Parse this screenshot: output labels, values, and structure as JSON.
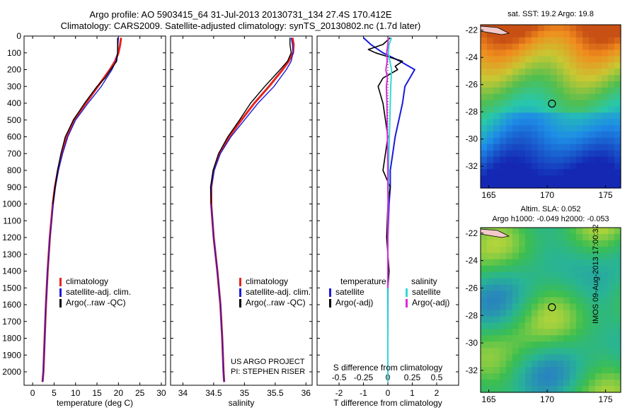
{
  "header": {
    "line1": "Argo profile: AO 5903415_64 31-Jul-2013 20130731_134 27.4S 170.412E",
    "line2": "Climatology: CARS2009. Satellite-adjusted climatology: synTS_20130802.nc (1.7d later)"
  },
  "colors": {
    "climatology": "#e8231c",
    "satellite": "#1a1adb",
    "argo": "#000000",
    "sat_salinity": "#33d9d9",
    "argo_salinity": "#d92ad9"
  },
  "legend": {
    "climatology": "climatology",
    "satellite_adj": "satellite-adj. clim.",
    "argo_raw": "Argo(..raw -QC)",
    "temperature_head": "temperature",
    "salinity_head": "salinity",
    "satellite": "satellite",
    "argo_adj": "Argo(-adj)"
  },
  "footer": {
    "project": "US ARGO PROJECT",
    "pi": "PI: STEPHEN RISER",
    "stamp": "IMOS 09-Aug-2013 17:00:32"
  },
  "maps": {
    "sst_title": "sat. SST: 19.2 Argo: 19.8",
    "sla_title1": "Altim. SLA: 0.052",
    "sla_title2": "Argo h1000: -0.049 h2000: -0.053",
    "lon_ticks": [
      "165",
      "170",
      "175"
    ],
    "lat_ticks": [
      "-22",
      "-24",
      "-26",
      "-28",
      "-30",
      "-32"
    ],
    "profile_lon": 170.412,
    "profile_lat": -27.4
  },
  "chart_data": [
    {
      "type": "line",
      "xlabel": "temperature (deg C)",
      "ylabel": "",
      "xlim": [
        -2,
        31
      ],
      "ylim": [
        2080,
        0
      ],
      "xticks": [
        "0",
        "5",
        "10",
        "15",
        "20",
        "25",
        "30"
      ],
      "yticks": [
        "0",
        "100",
        "200",
        "300",
        "400",
        "500",
        "600",
        "700",
        "800",
        "900",
        "1000",
        "1100",
        "1200",
        "1300",
        "1400",
        "1500",
        "1600",
        "1700",
        "1800",
        "1900",
        "2000"
      ],
      "series": [
        {
          "name": "climatology",
          "y": [
            10,
            50,
            100,
            150,
            200,
            300,
            400,
            500,
            600,
            700,
            800,
            900,
            1000,
            1200,
            1400,
            1600,
            1800,
            2000,
            2060
          ],
          "x": [
            20.6,
            20.4,
            20.0,
            19.2,
            18.0,
            15.2,
            12.4,
            9.6,
            7.9,
            6.8,
            5.9,
            5.2,
            4.7,
            4.0,
            3.5,
            3.1,
            2.8,
            2.5,
            2.3
          ]
        },
        {
          "name": "satellite-adj. clim.",
          "y": [
            10,
            50,
            100,
            150,
            200,
            300,
            400,
            500,
            600,
            700,
            800,
            900,
            1000,
            1200,
            1400,
            1600,
            1800,
            2000,
            2060
          ],
          "x": [
            20.0,
            19.9,
            19.8,
            19.4,
            18.5,
            16.0,
            12.9,
            10.0,
            8.2,
            7.0,
            6.0,
            5.3,
            4.8,
            4.0,
            3.5,
            3.1,
            2.8,
            2.5,
            2.3
          ]
        },
        {
          "name": "Argo(..raw -QC)",
          "y": [
            10,
            50,
            100,
            150,
            200,
            250,
            300,
            400,
            500,
            600,
            700,
            800,
            900,
            1000
          ],
          "x": [
            19.8,
            19.8,
            19.8,
            19.6,
            18.2,
            16.9,
            15.0,
            12.1,
            9.5,
            7.6,
            6.6,
            5.8,
            5.2,
            4.7
          ]
        }
      ]
    },
    {
      "type": "line",
      "xlabel": "salinity",
      "ylabel": "",
      "xlim": [
        33.8,
        36.1
      ],
      "ylim": [
        2080,
        0
      ],
      "xticks": [
        "34",
        "34.5",
        "35",
        "35.5",
        "36"
      ],
      "series": [
        {
          "name": "climatology",
          "y": [
            10,
            50,
            100,
            150,
            200,
            300,
            400,
            500,
            600,
            700,
            800,
            900,
            1000,
            1200,
            1400,
            1600,
            1800,
            2000,
            2060
          ],
          "x": [
            35.78,
            35.8,
            35.79,
            35.72,
            35.62,
            35.4,
            35.16,
            34.95,
            34.75,
            34.59,
            34.5,
            34.46,
            34.46,
            34.5,
            34.56,
            34.61,
            34.64,
            34.66,
            34.67
          ]
        },
        {
          "name": "satellite-adj. clim.",
          "y": [
            10,
            50,
            100,
            150,
            200,
            300,
            400,
            500,
            600,
            700,
            800,
            900,
            1000,
            1200,
            1400,
            1600,
            1800,
            2000,
            2060
          ],
          "x": [
            35.76,
            35.78,
            35.79,
            35.76,
            35.68,
            35.48,
            35.22,
            35.0,
            34.78,
            34.61,
            34.51,
            34.46,
            34.46,
            34.5,
            34.56,
            34.61,
            34.64,
            34.66,
            34.67
          ]
        },
        {
          "name": "Argo(..raw -QC)",
          "y": [
            10,
            50,
            100,
            150,
            200,
            300,
            400,
            500,
            600,
            700,
            800,
            900,
            1000
          ],
          "x": [
            35.74,
            35.74,
            35.76,
            35.7,
            35.58,
            35.33,
            35.1,
            34.92,
            34.73,
            34.58,
            34.49,
            34.45,
            34.46
          ]
        }
      ]
    },
    {
      "type": "line",
      "xlabel": "T difference from climatology",
      "top_xlabel": "S difference from climatology",
      "xlim": [
        -2.9,
        2.9
      ],
      "ylim": [
        2080,
        0
      ],
      "xticks": [
        "-2",
        "-1",
        "0",
        "1",
        "2"
      ],
      "top_xticks": [
        "-0.5",
        "-0.25",
        "0",
        "0.25",
        "0.5"
      ],
      "series": [
        {
          "name": "T satellite",
          "y": [
            10,
            50,
            100,
            150,
            200,
            300,
            400,
            500,
            600,
            700,
            800,
            900,
            1000,
            1200,
            1500,
            1800,
            2000,
            2060
          ],
          "x": [
            -1.0,
            -0.7,
            -0.2,
            0.5,
            1.1,
            0.7,
            0.6,
            0.45,
            0.3,
            0.2,
            0.1,
            0.1,
            0.05,
            0.0,
            0.0,
            0.0,
            0.0,
            0.0
          ]
        },
        {
          "name": "T Argo(-adj)",
          "y": [
            10,
            50,
            80,
            100,
            150,
            180,
            200,
            250,
            300,
            400,
            500,
            600,
            700,
            800,
            900,
            1000,
            1200,
            1400,
            1500
          ],
          "x": [
            0.1,
            -0.2,
            -0.8,
            -0.5,
            0.6,
            0.3,
            0.4,
            -0.2,
            -0.4,
            -0.2,
            -0.1,
            0.0,
            -0.1,
            -0.2,
            0.1,
            0.0,
            -0.05,
            0.05,
            0.0
          ]
        },
        {
          "name": "S satellite",
          "y": [
            10,
            50,
            100,
            150,
            200,
            300,
            400,
            500,
            600,
            700,
            800,
            900,
            1000,
            1200,
            1500,
            1800,
            2000,
            2060
          ],
          "x": [
            0.15,
            0.05,
            0.02,
            0.08,
            0.15,
            0.12,
            0.1,
            0.08,
            0.06,
            0.04,
            0.03,
            0.02,
            0.01,
            0.0,
            -0.01,
            0.0,
            0.0,
            0.0
          ]
        },
        {
          "name": "S Argo(-adj)",
          "y": [
            10,
            50,
            100,
            150,
            200,
            250,
            300,
            400,
            500,
            600,
            700,
            800,
            900,
            1000,
            1200,
            1500
          ],
          "x": [
            0.02,
            0.0,
            -0.05,
            -0.03,
            -0.08,
            -0.02,
            -0.06,
            -0.04,
            -0.03,
            -0.02,
            -0.01,
            0.0,
            0.0,
            0.01,
            0.0,
            0.0
          ]
        }
      ]
    }
  ]
}
